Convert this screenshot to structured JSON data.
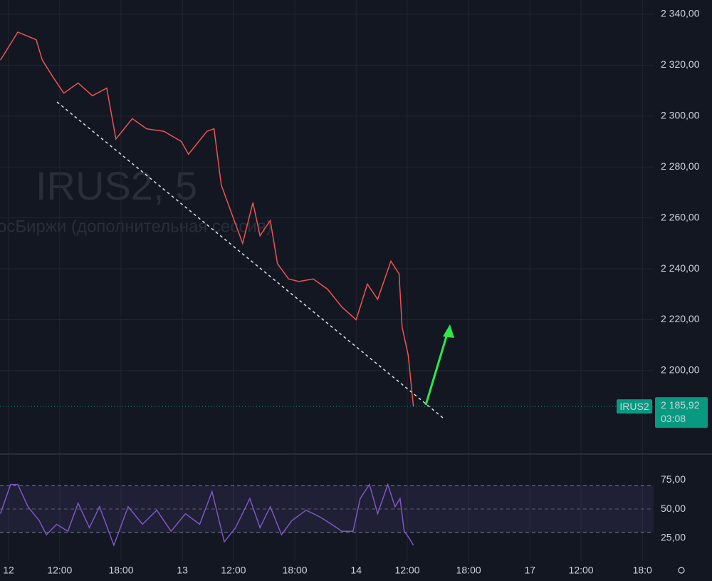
{
  "chart_data": [
    {
      "type": "line",
      "title": "IRUS2, 5",
      "subtitle": "осБиржи (дополнительная сессия)",
      "series": [
        {
          "name": "IRUS2",
          "color": "#ef5350",
          "x": [
            -0.8,
            0.9,
            2.7,
            3.3,
            4.4,
            5.4,
            6.8,
            8.2,
            9.6,
            10.5,
            12.1,
            13.5,
            15.2,
            16.9,
            17.6,
            19.4,
            20.1,
            20.8,
            21.8,
            22.9,
            23.9,
            24.6,
            25.6,
            26.3,
            27.4,
            28.4,
            29.8,
            31.2,
            32.6,
            34.0,
            35.1,
            36.1,
            37.4,
            38.2,
            38.5,
            39.1,
            39.6
          ],
          "values": [
            2322,
            2333,
            2330,
            2322,
            2315,
            2309,
            2313,
            2308,
            2311,
            2291,
            2299,
            2295,
            2294,
            2290,
            2285,
            2294,
            2295,
            2273,
            2262,
            2250,
            2266,
            2253,
            2259,
            2242,
            2236,
            2235,
            2236,
            2232,
            2225,
            2220,
            2234,
            2228,
            2243,
            2238,
            2217,
            2206,
            2185.92
          ]
        }
      ],
      "xlim": [
        -0.84,
        63.1
      ],
      "xticks": [
        {
          "value": 0,
          "label": "12"
        },
        {
          "value": 5,
          "label": "12:00"
        },
        {
          "value": 11,
          "label": "18:00"
        },
        {
          "value": 17,
          "label": "13"
        },
        {
          "value": 22,
          "label": "12:00"
        },
        {
          "value": 28,
          "label": "18:00"
        },
        {
          "value": 34,
          "label": "14"
        },
        {
          "value": 39,
          "label": "12:00"
        },
        {
          "value": 45,
          "label": "18:00"
        },
        {
          "value": 51,
          "label": "17"
        },
        {
          "value": 56,
          "label": "12:00"
        },
        {
          "value": 62,
          "label": "18:0"
        }
      ],
      "ylim": [
        2167.2,
        2345.6
      ],
      "yticks": [
        {
          "value": 2340,
          "label": "2 340,00"
        },
        {
          "value": 2320,
          "label": "2 320,00"
        },
        {
          "value": 2300,
          "label": "2 300,00"
        },
        {
          "value": 2280,
          "label": "2 280,00"
        },
        {
          "value": 2260,
          "label": "2 260,00"
        },
        {
          "value": 2240,
          "label": "2 240,00"
        },
        {
          "value": 2220,
          "label": "2 220,00"
        },
        {
          "value": 2200,
          "label": "2 200,00"
        }
      ],
      "last_price": {
        "value": 2185.92,
        "label": "2 185,92"
      },
      "countdown": "03:08",
      "grid": true
    },
    {
      "type": "line",
      "series": [
        {
          "color": "#7e57c2",
          "x": [
            -0.8,
            0.2,
            0.9,
            1.9,
            3.0,
            3.7,
            4.7,
            5.8,
            6.8,
            7.9,
            8.9,
            10.3,
            11.7,
            13.1,
            14.5,
            15.9,
            17.3,
            18.7,
            19.9,
            21.1,
            22.2,
            23.6,
            24.6,
            25.6,
            26.7,
            27.7,
            29.1,
            30.5,
            31.6,
            32.6,
            33.7,
            34.4,
            35.3,
            36.1,
            37.1,
            37.8,
            38.3,
            38.7,
            39.2,
            39.6
          ],
          "values": [
            46,
            71,
            71,
            52,
            40,
            28,
            37,
            31,
            55,
            34,
            52,
            19,
            52,
            37,
            49,
            31,
            46,
            37,
            65,
            22,
            34,
            59,
            34,
            52,
            28,
            40,
            49,
            43,
            37,
            31,
            31,
            59,
            71,
            46,
            71,
            52,
            59,
            31,
            25,
            19
          ]
        }
      ],
      "xlim": [
        -0.84,
        63.1
      ],
      "ylim": [
        5.5,
        97
      ],
      "yticks": [
        {
          "value": 75,
          "label": "75,00"
        },
        {
          "value": 50,
          "label": "50,00"
        },
        {
          "value": 25,
          "label": "25,00"
        }
      ],
      "band": [
        30,
        70
      ]
    }
  ]
}
